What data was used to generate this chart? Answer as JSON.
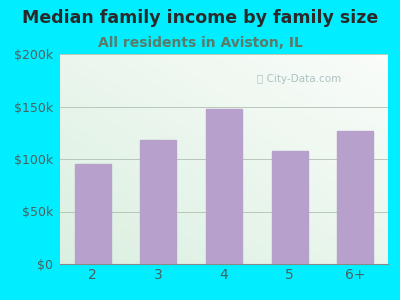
{
  "title": "Median family income by family size",
  "subtitle": "All residents in Aviston, IL",
  "categories": [
    "2",
    "3",
    "4",
    "5",
    "6+"
  ],
  "values": [
    95000,
    118000,
    148000,
    108000,
    127000
  ],
  "bar_color": "#b8a0cc",
  "background_outer": "#00eeff",
  "title_color": "#2a2a2a",
  "subtitle_color": "#5a7a6a",
  "tick_label_color": "#4a6060",
  "ylim": [
    0,
    200000
  ],
  "yticks": [
    0,
    50000,
    100000,
    150000,
    200000
  ],
  "ytick_labels": [
    "$0",
    "$50k",
    "$100k",
    "$150k",
    "$200k"
  ],
  "title_fontsize": 12.5,
  "subtitle_fontsize": 10,
  "watermark_text": "City-Data.com",
  "watermark_color": "#a0b8b8"
}
